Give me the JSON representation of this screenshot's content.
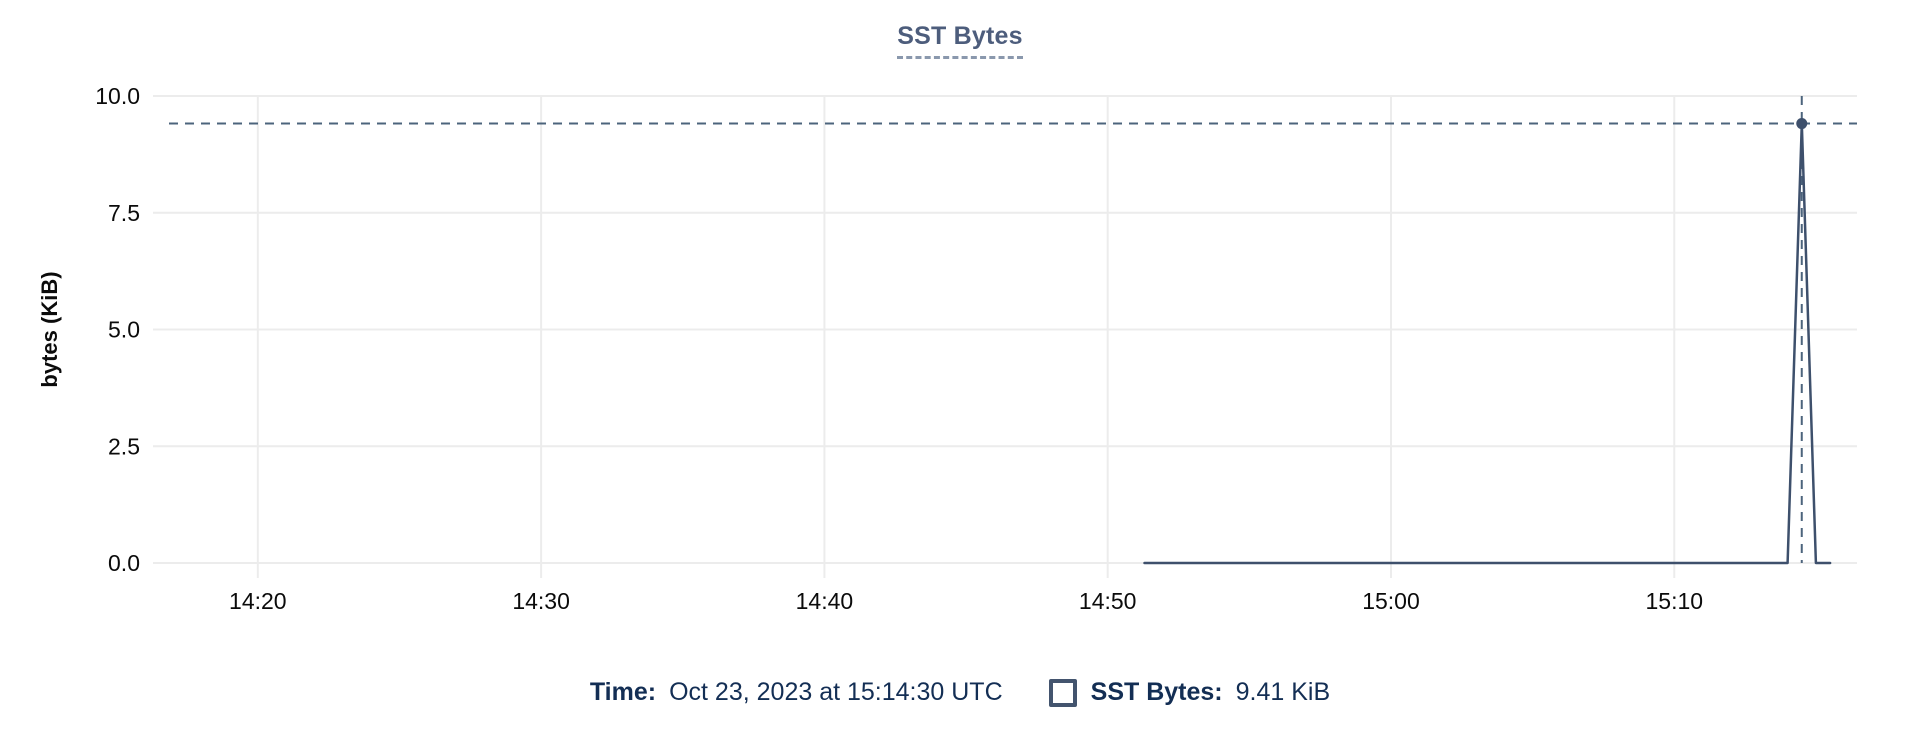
{
  "title": "SST Bytes",
  "tooltip": {
    "time_label": "Time:",
    "time_value": "Oct 23, 2023 at 15:14:30 UTC",
    "series_label": "SST Bytes:",
    "series_value": "9.41 KiB"
  },
  "colors": {
    "title_text": "#4d5d7c",
    "title_underline": "#8a98ad",
    "grid": "#ececec",
    "axis_text": "#0b0b0b",
    "series_line": "#3e506c",
    "crosshair": "#4c647c",
    "hover_dot": "#3e506c",
    "legend_text": "#132e54",
    "swatch_border": "#43546e",
    "background": "#ffffff"
  },
  "chart_data": {
    "type": "line",
    "title": "SST Bytes",
    "xlabel": "",
    "ylabel": "bytes (KiB)",
    "ylim": [
      0,
      10
    ],
    "xlim_minutes_after_1400": [
      16.3,
      76.45
    ],
    "grid": true,
    "y_ticks": [
      {
        "value": 0.0,
        "label": "0.0"
      },
      {
        "value": 2.5,
        "label": "2.5"
      },
      {
        "value": 5.0,
        "label": "5.0"
      },
      {
        "value": 7.5,
        "label": "7.5"
      },
      {
        "value": 10.0,
        "label": "10.0"
      }
    ],
    "x_ticks": [
      {
        "minutes": 20,
        "label": "14:20"
      },
      {
        "minutes": 30,
        "label": "14:30"
      },
      {
        "minutes": 40,
        "label": "14:40"
      },
      {
        "minutes": 50,
        "label": "14:50"
      },
      {
        "minutes": 60,
        "label": "15:00"
      },
      {
        "minutes": 70,
        "label": "15:10"
      }
    ],
    "series": [
      {
        "name": "SST Bytes",
        "unit": "KiB",
        "points": [
          {
            "x_min": 51.3,
            "y_kib": 0
          },
          {
            "x_min": 74.0,
            "y_kib": 0
          },
          {
            "x_min": 74.5,
            "y_kib": 9.41
          },
          {
            "x_min": 75.0,
            "y_kib": 0
          },
          {
            "x_min": 75.5,
            "y_kib": 0
          }
        ]
      }
    ],
    "hover_point": {
      "x_min": 74.5,
      "y_kib": 9.41,
      "time_label": "Oct 23, 2023 at 15:14:30 UTC",
      "value_label": "9.41 KiB"
    },
    "legend_position": "bottom"
  }
}
